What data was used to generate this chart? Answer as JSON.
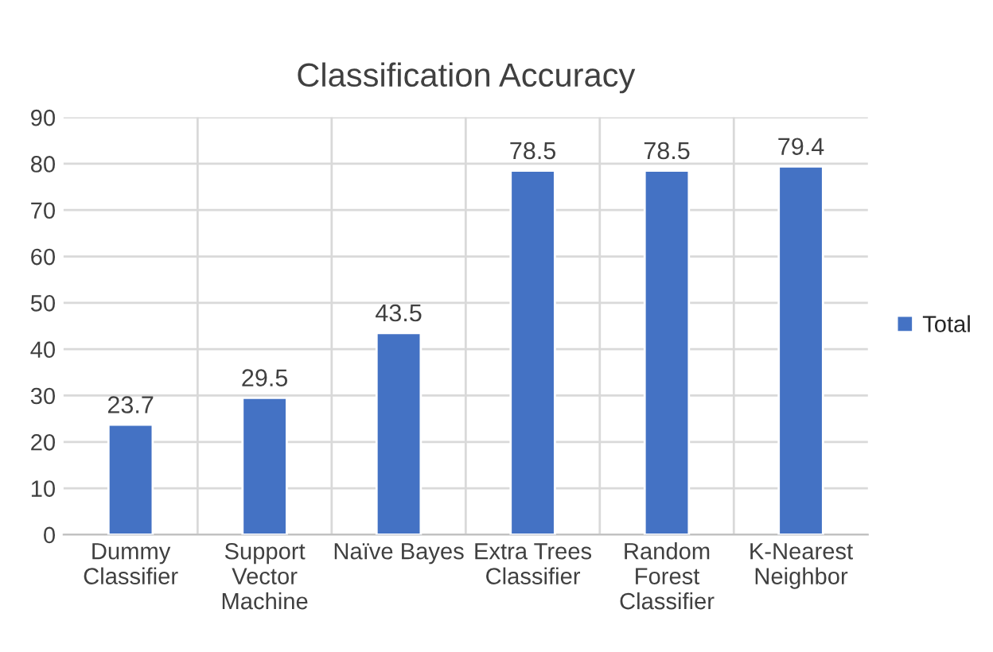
{
  "chart_data": {
    "type": "bar",
    "title": "Classification Accuracy",
    "categories": [
      "Dummy Classifier",
      "Support Vector Machine",
      "Naïve Bayes",
      "Extra Trees Classifier",
      "Random Forest Classifier",
      "K-Nearest Neighbor"
    ],
    "series": [
      {
        "name": "Total",
        "color": "#4472c4",
        "values": [
          23.7,
          29.5,
          43.5,
          78.5,
          78.5,
          79.4
        ]
      }
    ],
    "ylim": [
      0,
      90
    ],
    "yticks": [
      0,
      10,
      20,
      30,
      40,
      50,
      60,
      70,
      80,
      90
    ],
    "grid": true,
    "legend": "right",
    "data_labels": true
  }
}
